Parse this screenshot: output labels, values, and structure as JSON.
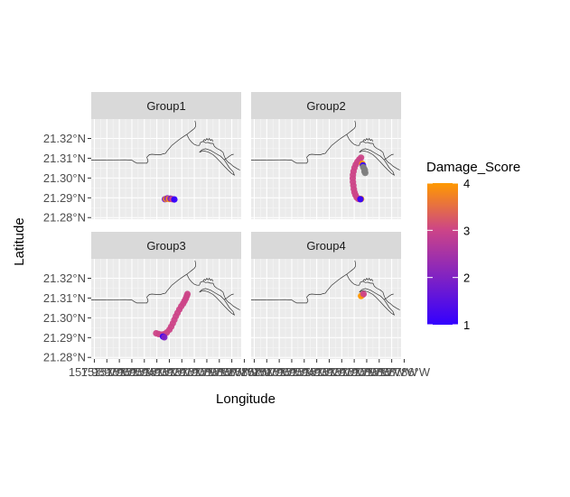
{
  "chart_data": {
    "type": "scatter",
    "subtitle": "",
    "xlabel": "Longitude",
    "ylabel": "Latitude",
    "facets": [
      "Group1",
      "Group2",
      "Group3",
      "Group4"
    ],
    "x_range": [
      -157.9825,
      -157.8625
    ],
    "y_range": [
      21.2792,
      21.3298
    ],
    "y_ticks": [
      21.28,
      21.29,
      21.3,
      21.31,
      21.32
    ],
    "y_tick_labels": [
      "21.28°N",
      "21.29°N",
      "21.30°N",
      "21.31°N",
      "21.32°N"
    ],
    "x_ticks": [
      -157.98,
      -157.97,
      -157.96,
      -157.95,
      -157.94,
      -157.93,
      -157.92,
      -157.91,
      -157.9,
      -157.89,
      -157.88,
      -157.87,
      -157.86
    ],
    "x_tick_labels": [
      "157.98°W",
      "157.97°W",
      "157.96°W",
      "157.95°W",
      "157.94°W",
      "157.93°W",
      "157.92°W",
      "157.91°W",
      "157.90°W",
      "157.89°W",
      "157.88°W",
      "157.87°W",
      "157.86°W"
    ],
    "grid": true,
    "legend": {
      "title": "Damage_Score",
      "placement": "right",
      "range": [
        1,
        4
      ],
      "ticks": [
        1,
        2,
        3,
        4
      ],
      "tick_labels": [
        "1",
        "2",
        "3",
        "4"
      ],
      "color_low": "#3300ff",
      "color_mid": "#cc4488",
      "color_high": "#ff9900"
    },
    "na_color": "#7f7f7f",
    "series": [
      {
        "facet": "Group1",
        "points": [
          {
            "x": -157.9235,
            "y": 21.2893,
            "score": 2
          },
          {
            "x": -157.9225,
            "y": 21.2895,
            "score": 4
          },
          {
            "x": -157.9215,
            "y": 21.2897,
            "score": 1
          },
          {
            "x": -157.921,
            "y": 21.2896,
            "score": 3
          },
          {
            "x": -157.92,
            "y": 21.2894,
            "score": 4
          },
          {
            "x": -157.919,
            "y": 21.2896,
            "score": 2
          },
          {
            "x": -157.9175,
            "y": 21.2893,
            "score": 3
          },
          {
            "x": -157.916,
            "y": 21.2892,
            "score": 1
          }
        ]
      },
      {
        "facet": "Group2",
        "points": [
          {
            "x": -157.8945,
            "y": 21.3103,
            "score": 3
          },
          {
            "x": -157.896,
            "y": 21.3094,
            "score": 3
          },
          {
            "x": -157.8975,
            "y": 21.3082,
            "score": 3
          },
          {
            "x": -157.8988,
            "y": 21.3068,
            "score": 3
          },
          {
            "x": -157.8998,
            "y": 21.3052,
            "score": 3
          },
          {
            "x": -157.9005,
            "y": 21.3034,
            "score": 3
          },
          {
            "x": -157.901,
            "y": 21.3016,
            "score": 3
          },
          {
            "x": -157.9012,
            "y": 21.2998,
            "score": 3
          },
          {
            "x": -157.901,
            "y": 21.298,
            "score": 3
          },
          {
            "x": -157.9007,
            "y": 21.2962,
            "score": 3
          },
          {
            "x": -157.9003,
            "y": 21.2944,
            "score": 3
          },
          {
            "x": -157.8998,
            "y": 21.2928,
            "score": 3
          },
          {
            "x": -157.899,
            "y": 21.2914,
            "score": 3
          },
          {
            "x": -157.898,
            "y": 21.2902,
            "score": 3
          },
          {
            "x": -157.8968,
            "y": 21.2895,
            "score": 3
          },
          {
            "x": -157.8955,
            "y": 21.2893,
            "score": 3
          },
          {
            "x": -157.8945,
            "y": 21.2894,
            "score": 4
          },
          {
            "x": -157.895,
            "y": 21.2893,
            "score": 1
          },
          {
            "x": -157.8935,
            "y": 21.3072,
            "score": 4
          },
          {
            "x": -157.893,
            "y": 21.3064,
            "score": 1
          },
          {
            "x": -157.8928,
            "y": 21.3055,
            "score": null
          },
          {
            "x": -157.8922,
            "y": 21.3048,
            "score": null
          },
          {
            "x": -157.8915,
            "y": 21.304,
            "score": null
          },
          {
            "x": -157.8918,
            "y": 21.3033,
            "score": null
          },
          {
            "x": -157.8912,
            "y": 21.3026,
            "score": null
          }
        ]
      },
      {
        "facet": "Group3",
        "points": [
          {
            "x": -157.9305,
            "y": 21.2922,
            "score": 3
          },
          {
            "x": -157.9285,
            "y": 21.2918,
            "score": 3
          },
          {
            "x": -157.9262,
            "y": 21.2915,
            "score": 3
          },
          {
            "x": -157.924,
            "y": 21.2918,
            "score": 3
          },
          {
            "x": -157.922,
            "y": 21.2926,
            "score": 3
          },
          {
            "x": -157.92,
            "y": 21.294,
            "score": 3
          },
          {
            "x": -157.9185,
            "y": 21.2955,
            "score": 3
          },
          {
            "x": -157.9172,
            "y": 21.2972,
            "score": 3
          },
          {
            "x": -157.916,
            "y": 21.299,
            "score": 3
          },
          {
            "x": -157.9148,
            "y": 21.3008,
            "score": 3
          },
          {
            "x": -157.9135,
            "y": 21.3025,
            "score": 3
          },
          {
            "x": -157.912,
            "y": 21.3042,
            "score": 3
          },
          {
            "x": -157.9105,
            "y": 21.3058,
            "score": 3
          },
          {
            "x": -157.909,
            "y": 21.3072,
            "score": 3
          },
          {
            "x": -157.9078,
            "y": 21.3085,
            "score": 3
          },
          {
            "x": -157.9068,
            "y": 21.3098,
            "score": 3
          },
          {
            "x": -157.906,
            "y": 21.311,
            "score": 3
          },
          {
            "x": -157.9055,
            "y": 21.312,
            "score": 3
          },
          {
            "x": -157.925,
            "y": 21.2905,
            "score": 1
          },
          {
            "x": -157.924,
            "y": 21.2902,
            "score": 2
          }
        ]
      },
      {
        "facet": "Group4",
        "points": [
          {
            "x": -157.8935,
            "y": 21.3115,
            "score": 3
          },
          {
            "x": -157.8945,
            "y": 21.311,
            "score": 4
          },
          {
            "x": -157.8925,
            "y": 21.312,
            "score": 3
          }
        ]
      }
    ],
    "basemap_lines": [
      [
        [
          -157.983,
          21.309
        ],
        [
          -157.955,
          21.3092
        ],
        [
          -157.95,
          21.309
        ],
        [
          -157.948,
          21.3082
        ],
        [
          -157.946,
          21.3075
        ],
        [
          -157.938,
          21.3075
        ],
        [
          -157.937,
          21.3085
        ],
        [
          -157.938,
          21.3105
        ],
        [
          -157.936,
          21.3118
        ],
        [
          -157.934,
          21.312
        ],
        [
          -157.93,
          21.3118
        ],
        [
          -157.927,
          21.3118
        ],
        [
          -157.925,
          21.3122
        ],
        [
          -157.923,
          21.3125
        ],
        [
          -157.922,
          21.3135
        ],
        [
          -157.92,
          21.315
        ],
        [
          -157.918,
          21.3165
        ],
        [
          -157.915,
          21.318
        ],
        [
          -157.912,
          21.3195
        ],
        [
          -157.909,
          21.3208
        ],
        [
          -157.906,
          21.322
        ],
        [
          -157.904,
          21.323
        ],
        [
          -157.902,
          21.324
        ],
        [
          -157.9,
          21.325
        ],
        [
          -157.899,
          21.326
        ],
        [
          -157.899,
          21.3275
        ],
        [
          -157.8995,
          21.329
        ]
      ],
      [
        [
          -157.906,
          21.322
        ],
        [
          -157.904,
          21.3195
        ],
        [
          -157.902,
          21.318
        ],
        [
          -157.9,
          21.317
        ],
        [
          -157.898,
          21.3165
        ],
        [
          -157.896,
          21.3165
        ],
        [
          -157.895,
          21.318
        ],
        [
          -157.893,
          21.3185
        ],
        [
          -157.891,
          21.3178
        ],
        [
          -157.889,
          21.318
        ],
        [
          -157.887,
          21.3175
        ],
        [
          -157.885,
          21.3175
        ],
        [
          -157.884,
          21.316
        ],
        [
          -157.882,
          21.315
        ],
        [
          -157.879,
          21.314
        ],
        [
          -157.877,
          21.313
        ],
        [
          -157.876,
          21.311
        ],
        [
          -157.875,
          21.3095
        ],
        [
          -157.873,
          21.308
        ],
        [
          -157.871,
          21.3072
        ],
        [
          -157.869,
          21.306
        ],
        [
          -157.866,
          21.3048
        ],
        [
          -157.8635,
          21.304
        ]
      ],
      [
        [
          -157.893,
          21.3185
        ],
        [
          -157.892,
          21.3195
        ],
        [
          -157.891,
          21.319
        ],
        [
          -157.89,
          21.32
        ],
        [
          -157.889,
          21.3192
        ],
        [
          -157.888,
          21.32
        ],
        [
          -157.887,
          21.319
        ],
        [
          -157.886,
          21.3195
        ],
        [
          -157.885,
          21.3185
        ]
      ],
      [
        [
          -157.896,
          21.313
        ],
        [
          -157.893,
          21.3138
        ],
        [
          -157.889,
          21.3132
        ],
        [
          -157.885,
          21.3118
        ],
        [
          -157.882,
          21.31
        ],
        [
          -157.879,
          21.308
        ],
        [
          -157.876,
          21.306
        ],
        [
          -157.873,
          21.304
        ],
        [
          -157.87,
          21.3022
        ],
        [
          -157.868,
          21.3015
        ],
        [
          -157.869,
          21.3032
        ],
        [
          -157.872,
          21.3052
        ],
        [
          -157.874,
          21.3072
        ],
        [
          -157.876,
          21.3092
        ],
        [
          -157.879,
          21.311
        ],
        [
          -157.883,
          21.3125
        ],
        [
          -157.887,
          21.314
        ],
        [
          -157.891,
          21.3148
        ],
        [
          -157.894,
          21.3142
        ],
        [
          -157.896,
          21.313
        ]
      ],
      [
        [
          -157.876,
          21.3092
        ],
        [
          -157.874,
          21.31
        ],
        [
          -157.872,
          21.311
        ],
        [
          -157.87,
          21.3118
        ],
        [
          -157.8685,
          21.312
        ]
      ]
    ]
  }
}
